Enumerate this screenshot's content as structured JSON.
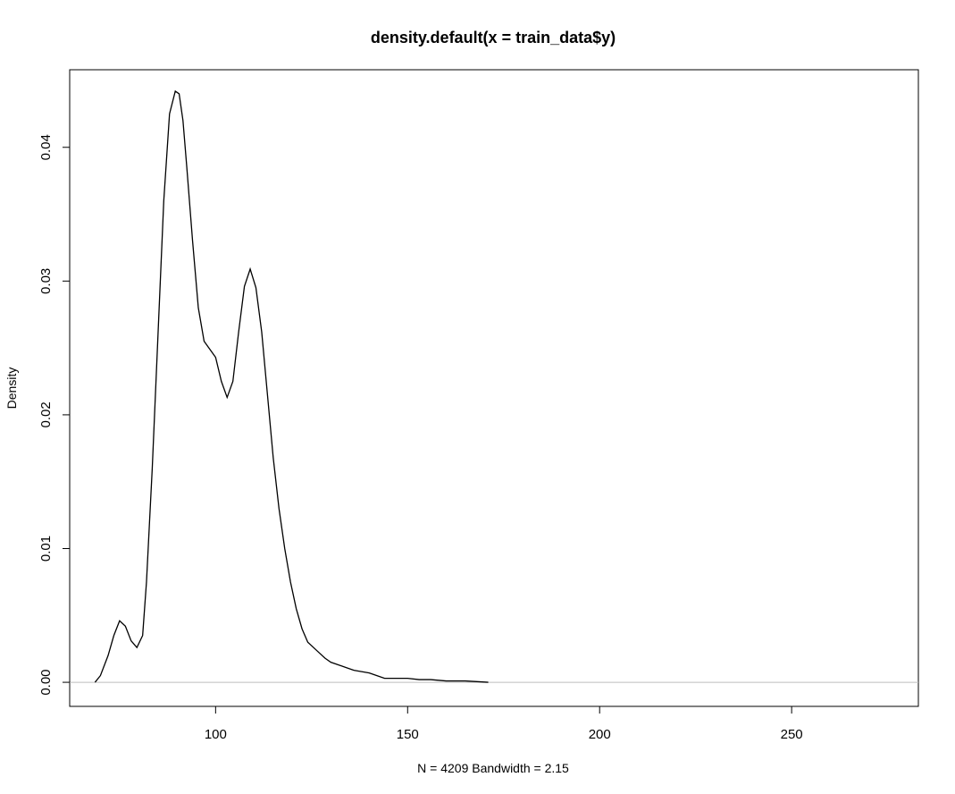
{
  "chart_data": {
    "type": "line",
    "title": "density.default(x = train_data$y)",
    "xlabel": "N = 4209   Bandwidth = 2.15",
    "ylabel": "Density",
    "xlim": [
      62,
      283
    ],
    "ylim": [
      -0.0018,
      0.0458
    ],
    "x_ticks": [
      100,
      150,
      200,
      250
    ],
    "y_ticks": [
      0.0,
      0.01,
      0.02,
      0.03,
      0.04
    ],
    "x_tick_labels": [
      "100",
      "150",
      "200",
      "250"
    ],
    "y_tick_labels": [
      "0.00",
      "0.01",
      "0.02",
      "0.03",
      "0.04"
    ],
    "baseline": 0,
    "grid": false,
    "legend": "none",
    "line_color": "#000000",
    "baseline_color": "#bebebe",
    "series": [
      {
        "x": [
          68.6,
          70,
          72,
          73.5,
          75,
          76.5,
          78,
          79.5,
          81,
          82,
          83.5,
          85,
          86.5,
          88,
          89.5,
          90.5,
          91.5,
          92.5,
          94,
          95.5,
          97,
          98.5,
          100,
          101.5,
          103,
          104.5,
          106,
          107.5,
          109,
          110.5,
          112,
          113.5,
          115,
          116.5,
          118,
          119.5,
          121,
          122.5,
          124,
          125.5,
          127,
          128.5,
          130,
          132,
          134,
          136,
          138,
          140,
          142,
          144,
          146,
          148,
          150,
          153,
          156,
          160,
          165,
          171
        ],
        "y": [
          0.0,
          0.0005,
          0.002,
          0.0035,
          0.0046,
          0.0042,
          0.0031,
          0.0026,
          0.0035,
          0.0075,
          0.016,
          0.026,
          0.036,
          0.0425,
          0.0442,
          0.044,
          0.042,
          0.0385,
          0.033,
          0.028,
          0.0255,
          0.0249,
          0.0243,
          0.0225,
          0.0213,
          0.0225,
          0.0262,
          0.0296,
          0.0309,
          0.0295,
          0.0262,
          0.0215,
          0.0168,
          0.013,
          0.01,
          0.0075,
          0.0055,
          0.004,
          0.003,
          0.0026,
          0.0022,
          0.0018,
          0.0015,
          0.0013,
          0.0011,
          0.0009,
          0.0008,
          0.0007,
          0.0005,
          0.0003,
          0.0003,
          0.0003,
          0.0003,
          0.0002,
          0.0002,
          0.0001,
          0.0001,
          0.0
        ]
      }
    ]
  }
}
